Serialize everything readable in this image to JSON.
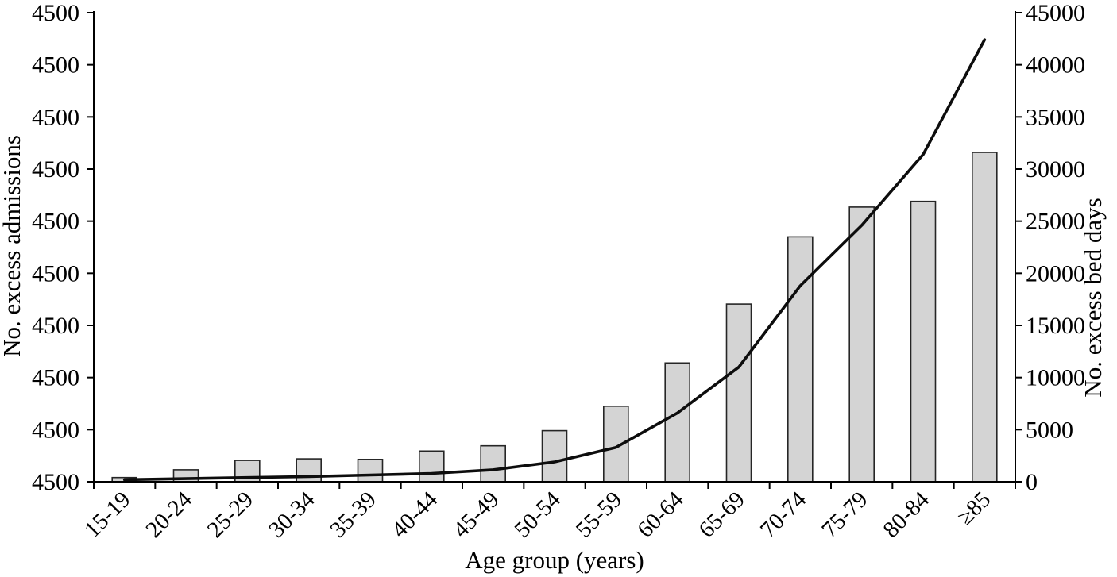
{
  "figure": {
    "background": "#ffffff"
  },
  "chart_data": {
    "type": "bar",
    "subtype": "bar+line-dual-axis",
    "title": "",
    "xlabel": "Age group (years)",
    "categories": [
      "15-19",
      "20-24",
      "25-29",
      "30-34",
      "35-39",
      "40-44",
      "45-49",
      "50-54",
      "55-59",
      "60-64",
      "65-69",
      "70-74",
      "75-79",
      "80-84",
      "≥85"
    ],
    "left_axis": {
      "title": "No. excess admissions",
      "tick_labels_bottom_to_top": [
        "4500",
        "4500",
        "4500",
        "4500",
        "4500",
        "4500",
        "4500",
        "4500",
        "4500",
        "4500"
      ]
    },
    "right_axis": {
      "title": "No. excess bed days",
      "min": 0,
      "max": 45000,
      "tick_step": 5000,
      "tick_labels_bottom_to_top": [
        "0",
        "5000",
        "10000",
        "15000",
        "20000",
        "25000",
        "30000",
        "35000",
        "40000",
        "45000"
      ]
    },
    "series": [
      {
        "name": "No. excess admissions",
        "type": "bar",
        "values_right_axis_scale": [
          400,
          1150,
          2050,
          2200,
          2150,
          2950,
          3450,
          4900,
          7250,
          11400,
          17050,
          23500,
          26350,
          26900,
          31600
        ]
      },
      {
        "name": "No. excess bed days",
        "type": "line",
        "values": [
          200,
          300,
          400,
          500,
          650,
          800,
          1150,
          1900,
          3300,
          6600,
          11000,
          18800,
          24600,
          31400,
          42400
        ]
      }
    ],
    "legend": "none",
    "grid": "off",
    "styles": {
      "bar_fill": "#d4d4d4",
      "bar_stroke": "#262626",
      "line_color": "#0d0d0d",
      "axis_color": "#000000"
    }
  }
}
